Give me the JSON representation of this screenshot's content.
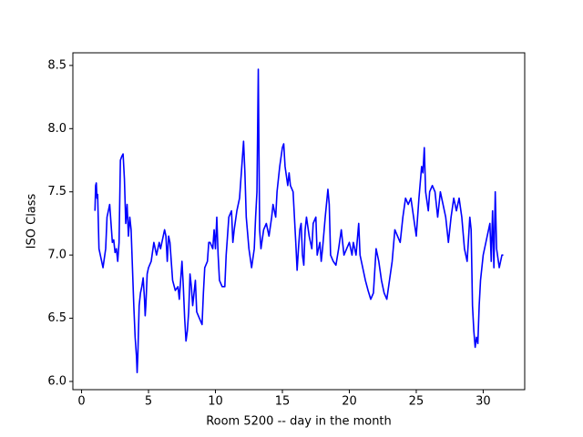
{
  "chart_data": {
    "type": "line",
    "xlabel": "Room 5200 -- day in the month",
    "ylabel": "ISO Class",
    "xlim": [
      -0.65,
      33.1
    ],
    "ylim": [
      5.935,
      8.6
    ],
    "xticks": [
      0,
      5,
      10,
      15,
      20,
      25,
      30
    ],
    "yticks": [
      {
        "value": 6,
        "label": "6.0"
      },
      {
        "value": 6.5,
        "label": "6.5"
      },
      {
        "value": 7,
        "label": "7.0"
      },
      {
        "value": 7.5,
        "label": "7.5"
      },
      {
        "value": 8,
        "label": "8.0"
      },
      {
        "value": 8.5,
        "label": "8.5"
      }
    ],
    "grid": false,
    "series": [
      {
        "color": "#0000ff",
        "x": [
          1.0,
          1.05,
          1.1,
          1.15,
          1.2,
          1.3,
          1.5,
          1.6,
          1.8,
          1.9,
          2.0,
          2.1,
          2.2,
          2.3,
          2.4,
          2.5,
          2.6,
          2.7,
          2.8,
          2.9,
          3.0,
          3.1,
          3.2,
          3.3,
          3.4,
          3.5,
          3.6,
          3.7,
          3.8,
          3.9,
          4.0,
          4.1,
          4.15,
          4.2,
          4.3,
          4.4,
          4.5,
          4.6,
          4.7,
          4.75,
          4.8,
          4.9,
          5.0,
          5.2,
          5.4,
          5.5,
          5.6,
          5.8,
          5.9,
          6.0,
          6.2,
          6.3,
          6.4,
          6.5,
          6.6,
          6.8,
          7.0,
          7.2,
          7.3,
          7.4,
          7.5,
          7.6,
          7.7,
          7.8,
          7.9,
          8.0,
          8.1,
          8.2,
          8.3,
          8.5,
          8.6,
          8.8,
          9.0,
          9.1,
          9.2,
          9.4,
          9.5,
          9.6,
          9.8,
          9.9,
          10.0,
          10.1,
          10.2,
          10.3,
          10.5,
          10.7,
          10.8,
          11.0,
          11.2,
          11.3,
          11.4,
          11.6,
          11.8,
          11.9,
          12.0,
          12.1,
          12.2,
          12.3,
          12.5,
          12.7,
          12.9,
          13.0,
          13.1,
          13.2,
          13.3,
          13.4,
          13.6,
          13.8,
          14.0,
          14.2,
          14.3,
          14.5,
          14.6,
          14.8,
          15.0,
          15.1,
          15.2,
          15.4,
          15.5,
          15.6,
          15.8,
          15.9,
          16.0,
          16.1,
          16.2,
          16.3,
          16.4,
          16.5,
          16.6,
          16.7,
          16.8,
          17.0,
          17.2,
          17.3,
          17.5,
          17.6,
          17.8,
          17.9,
          18.0,
          18.2,
          18.4,
          18.5,
          18.6,
          18.8,
          19.0,
          19.2,
          19.4,
          19.6,
          19.8,
          20.0,
          20.2,
          20.3,
          20.5,
          20.7,
          20.8,
          21.0,
          21.2,
          21.4,
          21.6,
          21.8,
          22.0,
          22.2,
          22.4,
          22.6,
          22.8,
          23.0,
          23.2,
          23.4,
          23.6,
          23.8,
          24.0,
          24.2,
          24.4,
          24.6,
          24.8,
          25.0,
          25.2,
          25.4,
          25.5,
          25.6,
          25.7,
          25.9,
          26.0,
          26.2,
          26.4,
          26.6,
          26.8,
          27.0,
          27.2,
          27.4,
          27.6,
          27.8,
          28.0,
          28.2,
          28.4,
          28.6,
          28.8,
          29.0,
          29.1,
          29.2,
          29.3,
          29.4,
          29.5,
          29.6,
          29.7,
          29.8,
          30.0,
          30.2,
          30.4,
          30.5,
          30.6,
          30.7,
          30.8,
          30.9,
          31.0,
          31.2,
          31.4,
          31.5
        ],
        "values": [
          7.35,
          7.55,
          7.57,
          7.45,
          7.48,
          7.05,
          6.95,
          6.9,
          7.05,
          7.3,
          7.35,
          7.4,
          7.25,
          7.1,
          7.12,
          7.02,
          7.05,
          6.95,
          7.1,
          7.75,
          7.78,
          7.8,
          7.6,
          7.25,
          7.4,
          7.15,
          7.3,
          7.2,
          6.9,
          6.6,
          6.35,
          6.2,
          6.07,
          6.2,
          6.6,
          6.7,
          6.75,
          6.82,
          6.65,
          6.52,
          6.6,
          6.85,
          6.9,
          6.95,
          7.1,
          7.05,
          7.0,
          7.1,
          7.05,
          7.1,
          7.2,
          7.15,
          6.95,
          7.15,
          7.1,
          6.8,
          6.72,
          6.75,
          6.65,
          6.8,
          6.95,
          6.75,
          6.5,
          6.32,
          6.4,
          6.55,
          6.85,
          6.75,
          6.6,
          6.8,
          6.55,
          6.5,
          6.45,
          6.7,
          6.9,
          6.95,
          7.1,
          7.1,
          7.05,
          7.2,
          7.05,
          7.3,
          7.0,
          6.8,
          6.75,
          6.75,
          7.0,
          7.3,
          7.35,
          7.1,
          7.2,
          7.35,
          7.45,
          7.6,
          7.75,
          7.9,
          7.65,
          7.3,
          7.05,
          6.9,
          7.05,
          7.3,
          7.5,
          8.47,
          7.2,
          7.05,
          7.2,
          7.25,
          7.15,
          7.3,
          7.4,
          7.3,
          7.5,
          7.7,
          7.85,
          7.88,
          7.7,
          7.55,
          7.65,
          7.55,
          7.5,
          7.3,
          7.1,
          6.88,
          7.05,
          7.2,
          7.25,
          7.0,
          6.92,
          7.2,
          7.3,
          7.15,
          7.05,
          7.25,
          7.3,
          7.0,
          7.1,
          6.95,
          7.05,
          7.3,
          7.52,
          7.4,
          7.0,
          6.95,
          6.92,
          7.05,
          7.2,
          7.0,
          7.05,
          7.1,
          7.0,
          7.1,
          7.0,
          7.25,
          7.0,
          6.9,
          6.8,
          6.72,
          6.65,
          6.7,
          7.05,
          6.95,
          6.8,
          6.7,
          6.65,
          6.8,
          6.95,
          7.2,
          7.15,
          7.1,
          7.3,
          7.45,
          7.4,
          7.45,
          7.3,
          7.15,
          7.45,
          7.7,
          7.65,
          7.85,
          7.5,
          7.35,
          7.5,
          7.55,
          7.5,
          7.3,
          7.5,
          7.4,
          7.3,
          7.1,
          7.3,
          7.45,
          7.35,
          7.45,
          7.3,
          7.05,
          6.95,
          7.3,
          7.2,
          6.6,
          6.4,
          6.27,
          6.35,
          6.3,
          6.6,
          6.8,
          7.0,
          7.1,
          7.2,
          7.25,
          6.95,
          7.35,
          6.9,
          7.5,
          7.05,
          6.9,
          7.0,
          7.0
        ]
      }
    ]
  }
}
